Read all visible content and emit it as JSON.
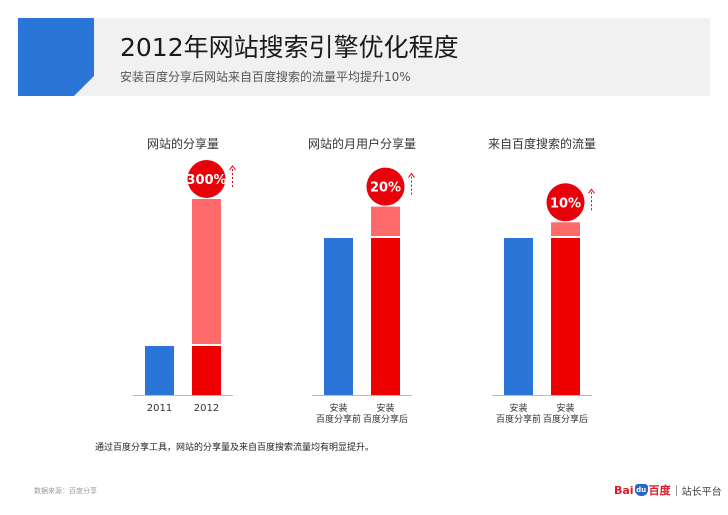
{
  "header": {
    "title": "2012年网站搜索引擎优化程度",
    "subtitle": "安装百度分享后网站来自百度搜索的流量平均提升10%"
  },
  "colors": {
    "blue": "#2b74d8",
    "red": "#ee0000",
    "light_red": "#ff6b6b",
    "badge": "#e8000b",
    "header_band": "#f1f1f1",
    "axis": "#bbbbbb"
  },
  "chart_data": [
    {
      "type": "bar",
      "title": "网站的分享量",
      "categories": [
        "2011",
        "2012"
      ],
      "values": [
        1,
        4
      ],
      "increase_label": "300%",
      "increase_value": 300
    },
    {
      "type": "bar",
      "title": "网站的月用户分享量",
      "categories": [
        "安装\n百度分享前",
        "安装\n百度分享后"
      ],
      "values": [
        1,
        1.2
      ],
      "increase_label": "20%",
      "increase_value": 20
    },
    {
      "type": "bar",
      "title": "来自百度搜索的流量",
      "categories": [
        "安装\n百度分享前",
        "安装\n百度分享后"
      ],
      "values": [
        1,
        1.1
      ],
      "increase_label": "10%",
      "increase_value": 10
    }
  ],
  "footnote": "通过百度分享工具，网站的分享量及来自百度搜索流量均有明显提升。",
  "source": "数据来源：百度分享",
  "logo": {
    "bai": "Bai",
    "du": "du",
    "baidu_cn": "百度",
    "sub": "站长平台"
  }
}
